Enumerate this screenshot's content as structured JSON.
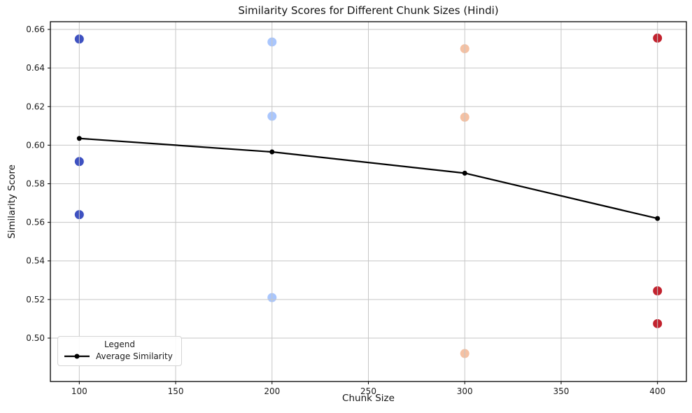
{
  "chart_data": {
    "type": "scatter",
    "title": "Similarity Scores for Different Chunk Sizes (Hindi)",
    "xlabel": "Chunk Size",
    "ylabel": "Similarity Score",
    "xlim": [
      85,
      415
    ],
    "ylim": [
      0.4775,
      0.664
    ],
    "x_tick_values": [
      100,
      150,
      200,
      250,
      300,
      350,
      400
    ],
    "x_tick_labels": [
      "100",
      "150",
      "200",
      "250",
      "300",
      "350",
      "400"
    ],
    "y_tick_values": [
      0.5,
      0.52,
      0.54,
      0.56,
      0.58,
      0.6,
      0.62,
      0.64,
      0.66
    ],
    "y_tick_labels": [
      "0.50",
      "0.52",
      "0.54",
      "0.56",
      "0.58",
      "0.60",
      "0.62",
      "0.64",
      "0.66"
    ],
    "grid": true,
    "legend_position": "lower left",
    "scatter_series": {
      "name": "Similarity Scores",
      "groups": [
        {
          "chunk_size": 100,
          "color": "#3e51c1",
          "values": [
            0.655,
            0.5915,
            0.564
          ]
        },
        {
          "chunk_size": 200,
          "color": "#a9c6fd",
          "values": [
            0.6535,
            0.615,
            0.521
          ]
        },
        {
          "chunk_size": 300,
          "color": "#f5c1a3",
          "values": [
            0.65,
            0.6145,
            0.492
          ]
        },
        {
          "chunk_size": 400,
          "color": "#c2222e",
          "values": [
            0.6555,
            0.5245,
            0.5075
          ]
        }
      ]
    },
    "line_series": {
      "name": "Average Similarity",
      "color": "#000000",
      "x": [
        100,
        200,
        300,
        400
      ],
      "values": [
        0.6035,
        0.5965,
        0.5855,
        0.562
      ]
    },
    "legend": {
      "title": "Legend",
      "entries": [
        "Average Similarity"
      ]
    },
    "style": {
      "grid_color": "#c6c6c6",
      "axis_color": "#000000",
      "text_color": "#1c1c1c",
      "background": "#ffffff"
    }
  }
}
